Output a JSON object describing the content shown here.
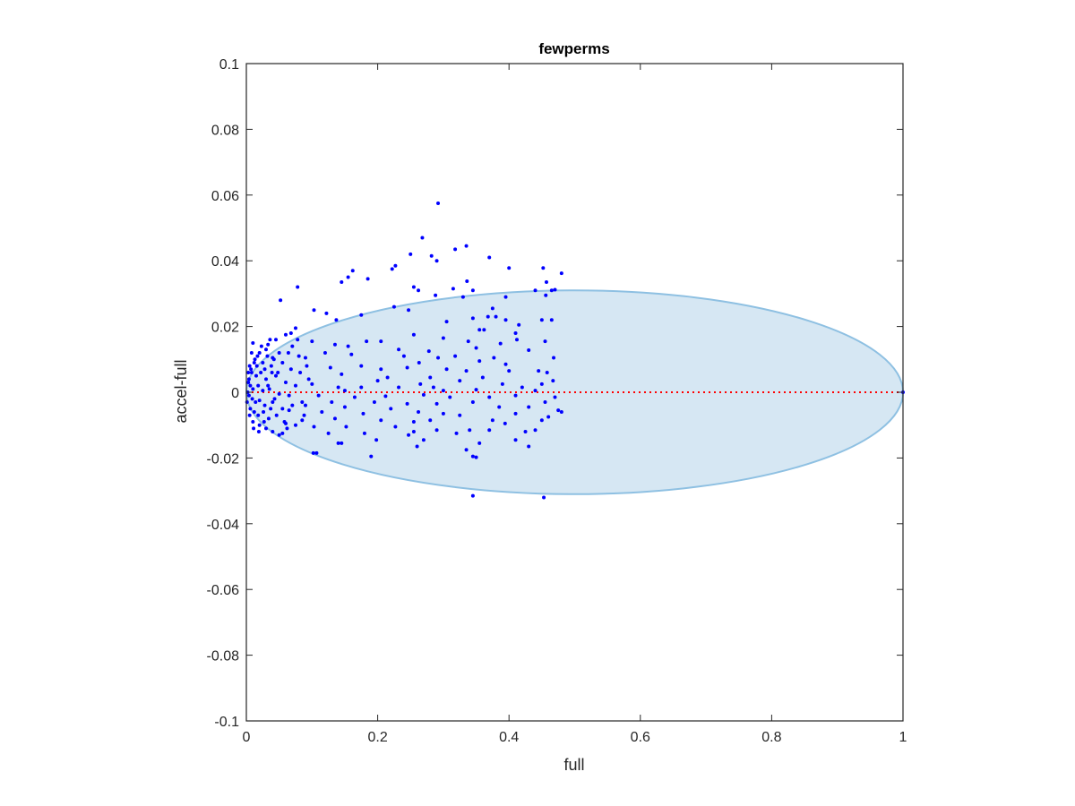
{
  "chart_data": {
    "type": "scatter",
    "title": "fewperms",
    "xlabel": "full",
    "ylabel": "accel-full",
    "xlim": [
      0,
      1
    ],
    "ylim": [
      -0.1,
      0.1
    ],
    "x_ticks": [
      "0",
      "0.2",
      "0.4",
      "0.6",
      "0.8",
      "1"
    ],
    "y_ticks": [
      "-0.1",
      "-0.08",
      "-0.06",
      "-0.04",
      "-0.02",
      "0",
      "0.02",
      "0.04",
      "0.06",
      "0.08",
      "0.1"
    ],
    "grid": false,
    "box": true,
    "reference_line": {
      "y": 0,
      "x_from": 0,
      "x_to": 1,
      "style": "dotted",
      "color": "#ff0000"
    },
    "ellipse": {
      "cx": 0.5,
      "cy": 0,
      "rx": 0.5,
      "ry": 0.031,
      "fill": "#d6e7f3",
      "stroke": "#8ec0e2"
    },
    "colors": {
      "points": "#0000ff",
      "axes": "#262626"
    },
    "series": [
      {
        "color": "#0000ff",
        "points": [
          [
            0.292,
            0.0575
          ],
          [
            0.268,
            0.047
          ],
          [
            0.335,
            0.0445
          ],
          [
            0.318,
            0.0435
          ],
          [
            0.282,
            0.0415
          ],
          [
            0.25,
            0.042
          ],
          [
            0.29,
            0.04
          ],
          [
            0.37,
            0.041
          ],
          [
            0.227,
            0.0385
          ],
          [
            0.222,
            0.0375
          ],
          [
            0.4,
            0.0378
          ],
          [
            0.452,
            0.0378
          ],
          [
            0.162,
            0.037
          ],
          [
            0.155,
            0.035
          ],
          [
            0.48,
            0.0362
          ],
          [
            0.185,
            0.0345
          ],
          [
            0.145,
            0.0335
          ],
          [
            0.336,
            0.0338
          ],
          [
            0.457,
            0.0335
          ],
          [
            0.078,
            0.032
          ],
          [
            0.255,
            0.032
          ],
          [
            0.262,
            0.031
          ],
          [
            0.315,
            0.0315
          ],
          [
            0.47,
            0.0312
          ],
          [
            0.052,
            0.028
          ],
          [
            0.288,
            0.0295
          ],
          [
            0.33,
            0.029
          ],
          [
            0.345,
            0.031
          ],
          [
            0.395,
            0.029
          ],
          [
            0.456,
            0.0295
          ],
          [
            0.44,
            0.031
          ],
          [
            0.465,
            0.031
          ],
          [
            0.103,
            0.025
          ],
          [
            0.122,
            0.024
          ],
          [
            0.137,
            0.022
          ],
          [
            0.175,
            0.0235
          ],
          [
            0.225,
            0.026
          ],
          [
            0.247,
            0.025
          ],
          [
            0.375,
            0.0255
          ],
          [
            0.305,
            0.0215
          ],
          [
            0.075,
            0.0195
          ],
          [
            0.345,
            0.0225
          ],
          [
            0.368,
            0.023
          ],
          [
            0.38,
            0.023
          ],
          [
            0.395,
            0.022
          ],
          [
            0.415,
            0.0205
          ],
          [
            0.45,
            0.022
          ],
          [
            0.465,
            0.022
          ],
          [
            0.355,
            0.019
          ],
          [
            0.362,
            0.019
          ],
          [
            0.41,
            0.018
          ],
          [
            0.06,
            0.0175
          ],
          [
            0.033,
            0.0145
          ],
          [
            0.045,
            0.016
          ],
          [
            0.1,
            0.0155
          ],
          [
            0.135,
            0.0145
          ],
          [
            0.183,
            0.0155
          ],
          [
            0.205,
            0.0155
          ],
          [
            0.255,
            0.0175
          ],
          [
            0.3,
            0.0165
          ],
          [
            0.338,
            0.0155
          ],
          [
            0.387,
            0.0148
          ],
          [
            0.412,
            0.016
          ],
          [
            0.455,
            0.0155
          ],
          [
            0.155,
            0.014
          ],
          [
            0.232,
            0.013
          ],
          [
            0.278,
            0.0125
          ],
          [
            0.35,
            0.0135
          ],
          [
            0.43,
            0.0128
          ],
          [
            0.12,
            0.012
          ],
          [
            0.16,
            0.0115
          ],
          [
            0.24,
            0.011
          ],
          [
            0.318,
            0.011
          ],
          [
            0.377,
            0.0105
          ],
          [
            0.04,
            0.0105
          ],
          [
            0.09,
            0.0105
          ],
          [
            0.263,
            0.009
          ],
          [
            0.292,
            0.0105
          ],
          [
            0.355,
            0.0095
          ],
          [
            0.395,
            0.0085
          ],
          [
            0.468,
            0.0105
          ],
          [
            0.128,
            0.0075
          ],
          [
            0.175,
            0.008
          ],
          [
            0.205,
            0.007
          ],
          [
            0.245,
            0.0075
          ],
          [
            0.305,
            0.007
          ],
          [
            0.335,
            0.0065
          ],
          [
            0.4,
            0.0065
          ],
          [
            0.445,
            0.0065
          ],
          [
            0.458,
            0.006
          ],
          [
            0.145,
            0.0055
          ],
          [
            0.215,
            0.0045
          ],
          [
            0.28,
            0.0045
          ],
          [
            0.36,
            0.0045
          ],
          [
            0.2,
            0.0035
          ],
          [
            0.265,
            0.0025
          ],
          [
            0.325,
            0.0035
          ],
          [
            0.39,
            0.0025
          ],
          [
            0.467,
            0.0035
          ],
          [
            0.1,
            0.0025
          ],
          [
            0.14,
            0.0015
          ],
          [
            0.175,
            0.0015
          ],
          [
            0.232,
            0.0015
          ],
          [
            0.285,
            0.0015
          ],
          [
            0.42,
            0.0015
          ],
          [
            0.45,
            0.0025
          ],
          [
            0.15,
            0.0005
          ],
          [
            0.3,
            0.0005
          ],
          [
            0.35,
            0.0008
          ],
          [
            0.44,
            0.0005
          ],
          [
            0.11,
            -0.001
          ],
          [
            0.165,
            -0.0015
          ],
          [
            0.212,
            -0.0012
          ],
          [
            0.27,
            -0.0008
          ],
          [
            0.31,
            -0.0015
          ],
          [
            0.37,
            -0.0015
          ],
          [
            0.41,
            -0.001
          ],
          [
            0.47,
            -0.0015
          ],
          [
            0.13,
            -0.003
          ],
          [
            0.195,
            -0.003
          ],
          [
            0.245,
            -0.0035
          ],
          [
            0.29,
            -0.0035
          ],
          [
            0.345,
            -0.003
          ],
          [
            0.455,
            -0.003
          ],
          [
            0.09,
            -0.004
          ],
          [
            0.15,
            -0.0045
          ],
          [
            0.22,
            -0.005
          ],
          [
            0.385,
            -0.0045
          ],
          [
            0.43,
            -0.0045
          ],
          [
            0.475,
            -0.0055
          ],
          [
            0.48,
            -0.006
          ],
          [
            0.065,
            -0.0055
          ],
          [
            0.115,
            -0.006
          ],
          [
            0.178,
            -0.0065
          ],
          [
            0.262,
            -0.006
          ],
          [
            0.3,
            -0.0065
          ],
          [
            0.325,
            -0.007
          ],
          [
            0.41,
            -0.0065
          ],
          [
            0.46,
            -0.0075
          ],
          [
            0.085,
            -0.0085
          ],
          [
            0.135,
            -0.008
          ],
          [
            0.205,
            -0.0085
          ],
          [
            0.255,
            -0.009
          ],
          [
            0.28,
            -0.0085
          ],
          [
            0.375,
            -0.0085
          ],
          [
            0.45,
            -0.0085
          ],
          [
            0.06,
            -0.0095
          ],
          [
            0.103,
            -0.0105
          ],
          [
            0.152,
            -0.0105
          ],
          [
            0.227,
            -0.0105
          ],
          [
            0.29,
            -0.0115
          ],
          [
            0.34,
            -0.0115
          ],
          [
            0.394,
            -0.0095
          ],
          [
            0.055,
            -0.0125
          ],
          [
            0.125,
            -0.0125
          ],
          [
            0.18,
            -0.0125
          ],
          [
            0.255,
            -0.012
          ],
          [
            0.32,
            -0.0125
          ],
          [
            0.37,
            -0.0115
          ],
          [
            0.425,
            -0.012
          ],
          [
            0.44,
            -0.0115
          ],
          [
            0.198,
            -0.0145
          ],
          [
            0.247,
            -0.013
          ],
          [
            0.14,
            -0.0155
          ],
          [
            0.27,
            -0.0145
          ],
          [
            0.355,
            -0.0155
          ],
          [
            0.41,
            -0.0145
          ],
          [
            0.145,
            -0.0155
          ],
          [
            0.26,
            -0.0165
          ],
          [
            0.335,
            -0.0175
          ],
          [
            0.43,
            -0.0165
          ],
          [
            0.102,
            -0.0185
          ],
          [
            0.107,
            -0.0185
          ],
          [
            0.19,
            -0.0195
          ],
          [
            0.345,
            -0.0195
          ],
          [
            0.35,
            -0.0198
          ],
          [
            0.345,
            -0.0315
          ],
          [
            0.453,
            -0.032
          ],
          [
            0.01,
            0.015
          ],
          [
            0.02,
            0.012
          ],
          [
            0.03,
            0.013
          ],
          [
            0.05,
            0.012
          ],
          [
            0.07,
            0.014
          ],
          [
            0.08,
            0.011
          ],
          [
            0.012,
            0.009
          ],
          [
            0.025,
            0.009
          ],
          [
            0.038,
            0.008
          ],
          [
            0.055,
            0.009
          ],
          [
            0.068,
            0.007
          ],
          [
            0.082,
            0.006
          ],
          [
            0.005,
            0.008
          ],
          [
            0.008,
            0.006
          ],
          [
            0.015,
            0.005
          ],
          [
            0.022,
            0.006
          ],
          [
            0.03,
            0.004
          ],
          [
            0.045,
            0.005
          ],
          [
            0.06,
            0.003
          ],
          [
            0.075,
            0.002
          ],
          [
            0.003,
            0.003
          ],
          [
            0.006,
            0.002
          ],
          [
            0.01,
            0.001
          ],
          [
            0.018,
            0.002
          ],
          [
            0.025,
            0.0005
          ],
          [
            0.035,
            0.001
          ],
          [
            0.05,
            -0.0005
          ],
          [
            0.065,
            -0.001
          ],
          [
            0.004,
            -0.001
          ],
          [
            0.009,
            -0.002
          ],
          [
            0.014,
            -0.003
          ],
          [
            0.02,
            -0.0025
          ],
          [
            0.028,
            -0.004
          ],
          [
            0.04,
            -0.003
          ],
          [
            0.055,
            -0.005
          ],
          [
            0.07,
            -0.004
          ],
          [
            0.006,
            -0.005
          ],
          [
            0.012,
            -0.006
          ],
          [
            0.018,
            -0.007
          ],
          [
            0.026,
            -0.006
          ],
          [
            0.034,
            -0.008
          ],
          [
            0.046,
            -0.007
          ],
          [
            0.058,
            -0.009
          ],
          [
            0.075,
            -0.01
          ],
          [
            0.01,
            -0.009
          ],
          [
            0.02,
            -0.01
          ],
          [
            0.03,
            -0.011
          ],
          [
            0.04,
            -0.012
          ],
          [
            0.05,
            -0.013
          ],
          [
            0.062,
            -0.011
          ],
          [
            0.002,
            0.0
          ],
          [
            0.004,
            0.004
          ],
          [
            0.007,
            0.007
          ],
          [
            0.013,
            0.01
          ],
          [
            0.017,
            0.011
          ],
          [
            0.028,
            0.007
          ],
          [
            0.033,
            0.002
          ],
          [
            0.043,
            -0.002
          ],
          [
            0.048,
            0.006
          ],
          [
            0.085,
            -0.003
          ],
          [
            0.095,
            0.004
          ],
          [
            0.092,
            0.008
          ],
          [
            0.088,
            -0.007
          ],
          [
            0.078,
            0.016
          ],
          [
            0.068,
            0.018
          ],
          [
            0.036,
            0.016
          ],
          [
            0.042,
            0.01
          ],
          [
            0.064,
            0.012
          ],
          [
            0.001,
            -0.003
          ],
          [
            0.003,
            0.006
          ],
          [
            0.005,
            -0.007
          ],
          [
            0.008,
            0.012
          ],
          [
            0.011,
            -0.011
          ],
          [
            0.016,
            0.008
          ],
          [
            0.019,
            -0.012
          ],
          [
            0.023,
            0.014
          ],
          [
            0.027,
            -0.009
          ],
          [
            0.032,
            0.011
          ],
          [
            0.037,
            -0.005
          ],
          [
            0.039,
            0.006
          ],
          [
            1.0,
            0.0
          ]
        ]
      }
    ]
  }
}
